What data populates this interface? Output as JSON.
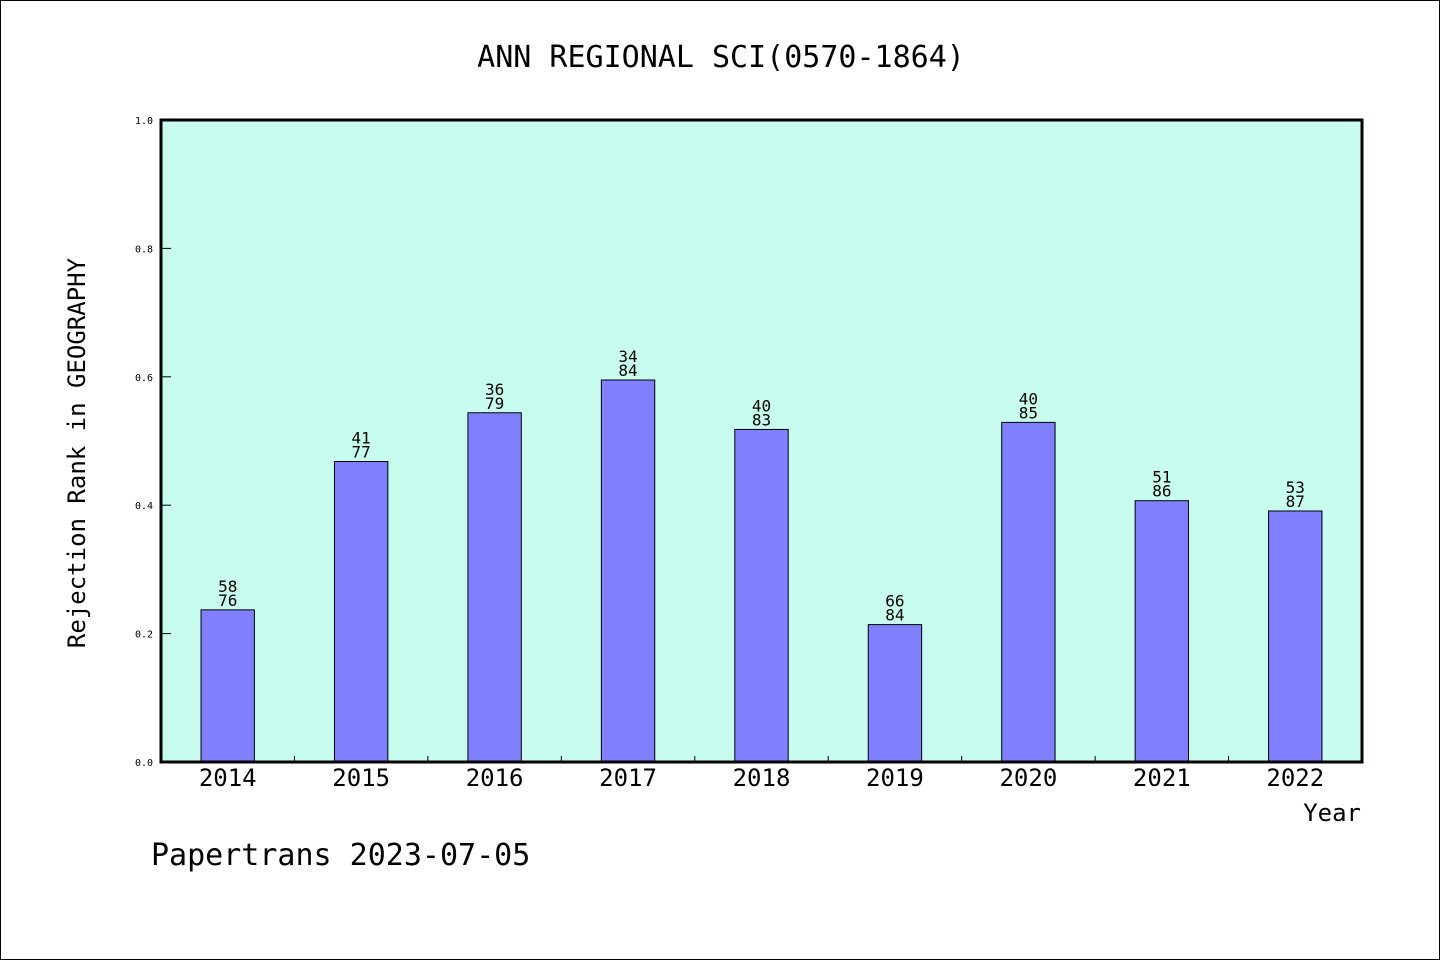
{
  "chart_data": {
    "type": "bar",
    "title": "ANN REGIONAL SCI(0570-1864)",
    "xlabel": "Year",
    "ylabel": "Rejection Rank in GEOGRAPHY",
    "categories": [
      "2014",
      "2015",
      "2016",
      "2017",
      "2018",
      "2019",
      "2020",
      "2021",
      "2022"
    ],
    "values": [
      0.237,
      0.468,
      0.544,
      0.595,
      0.518,
      0.214,
      0.529,
      0.407,
      0.391
    ],
    "bar_labels": [
      {
        "top": "58",
        "bottom": "76"
      },
      {
        "top": "41",
        "bottom": "77"
      },
      {
        "top": "36",
        "bottom": "79"
      },
      {
        "top": "34",
        "bottom": "84"
      },
      {
        "top": "40",
        "bottom": "83"
      },
      {
        "top": "66",
        "bottom": "84"
      },
      {
        "top": "40",
        "bottom": "85"
      },
      {
        "top": "51",
        "bottom": "86"
      },
      {
        "top": "53",
        "bottom": "87"
      }
    ],
    "ylim": [
      0.0,
      1.0
    ],
    "yticks": [
      "0.0",
      "0.2",
      "0.4",
      "0.6",
      "0.8",
      "1.0"
    ],
    "grid": false,
    "legend": "none",
    "colors": {
      "bar": "#8080ff",
      "plot_background": "#c8fcee",
      "axis": "#000000"
    }
  },
  "footer": {
    "text": "Papertrans 2023-07-05"
  }
}
